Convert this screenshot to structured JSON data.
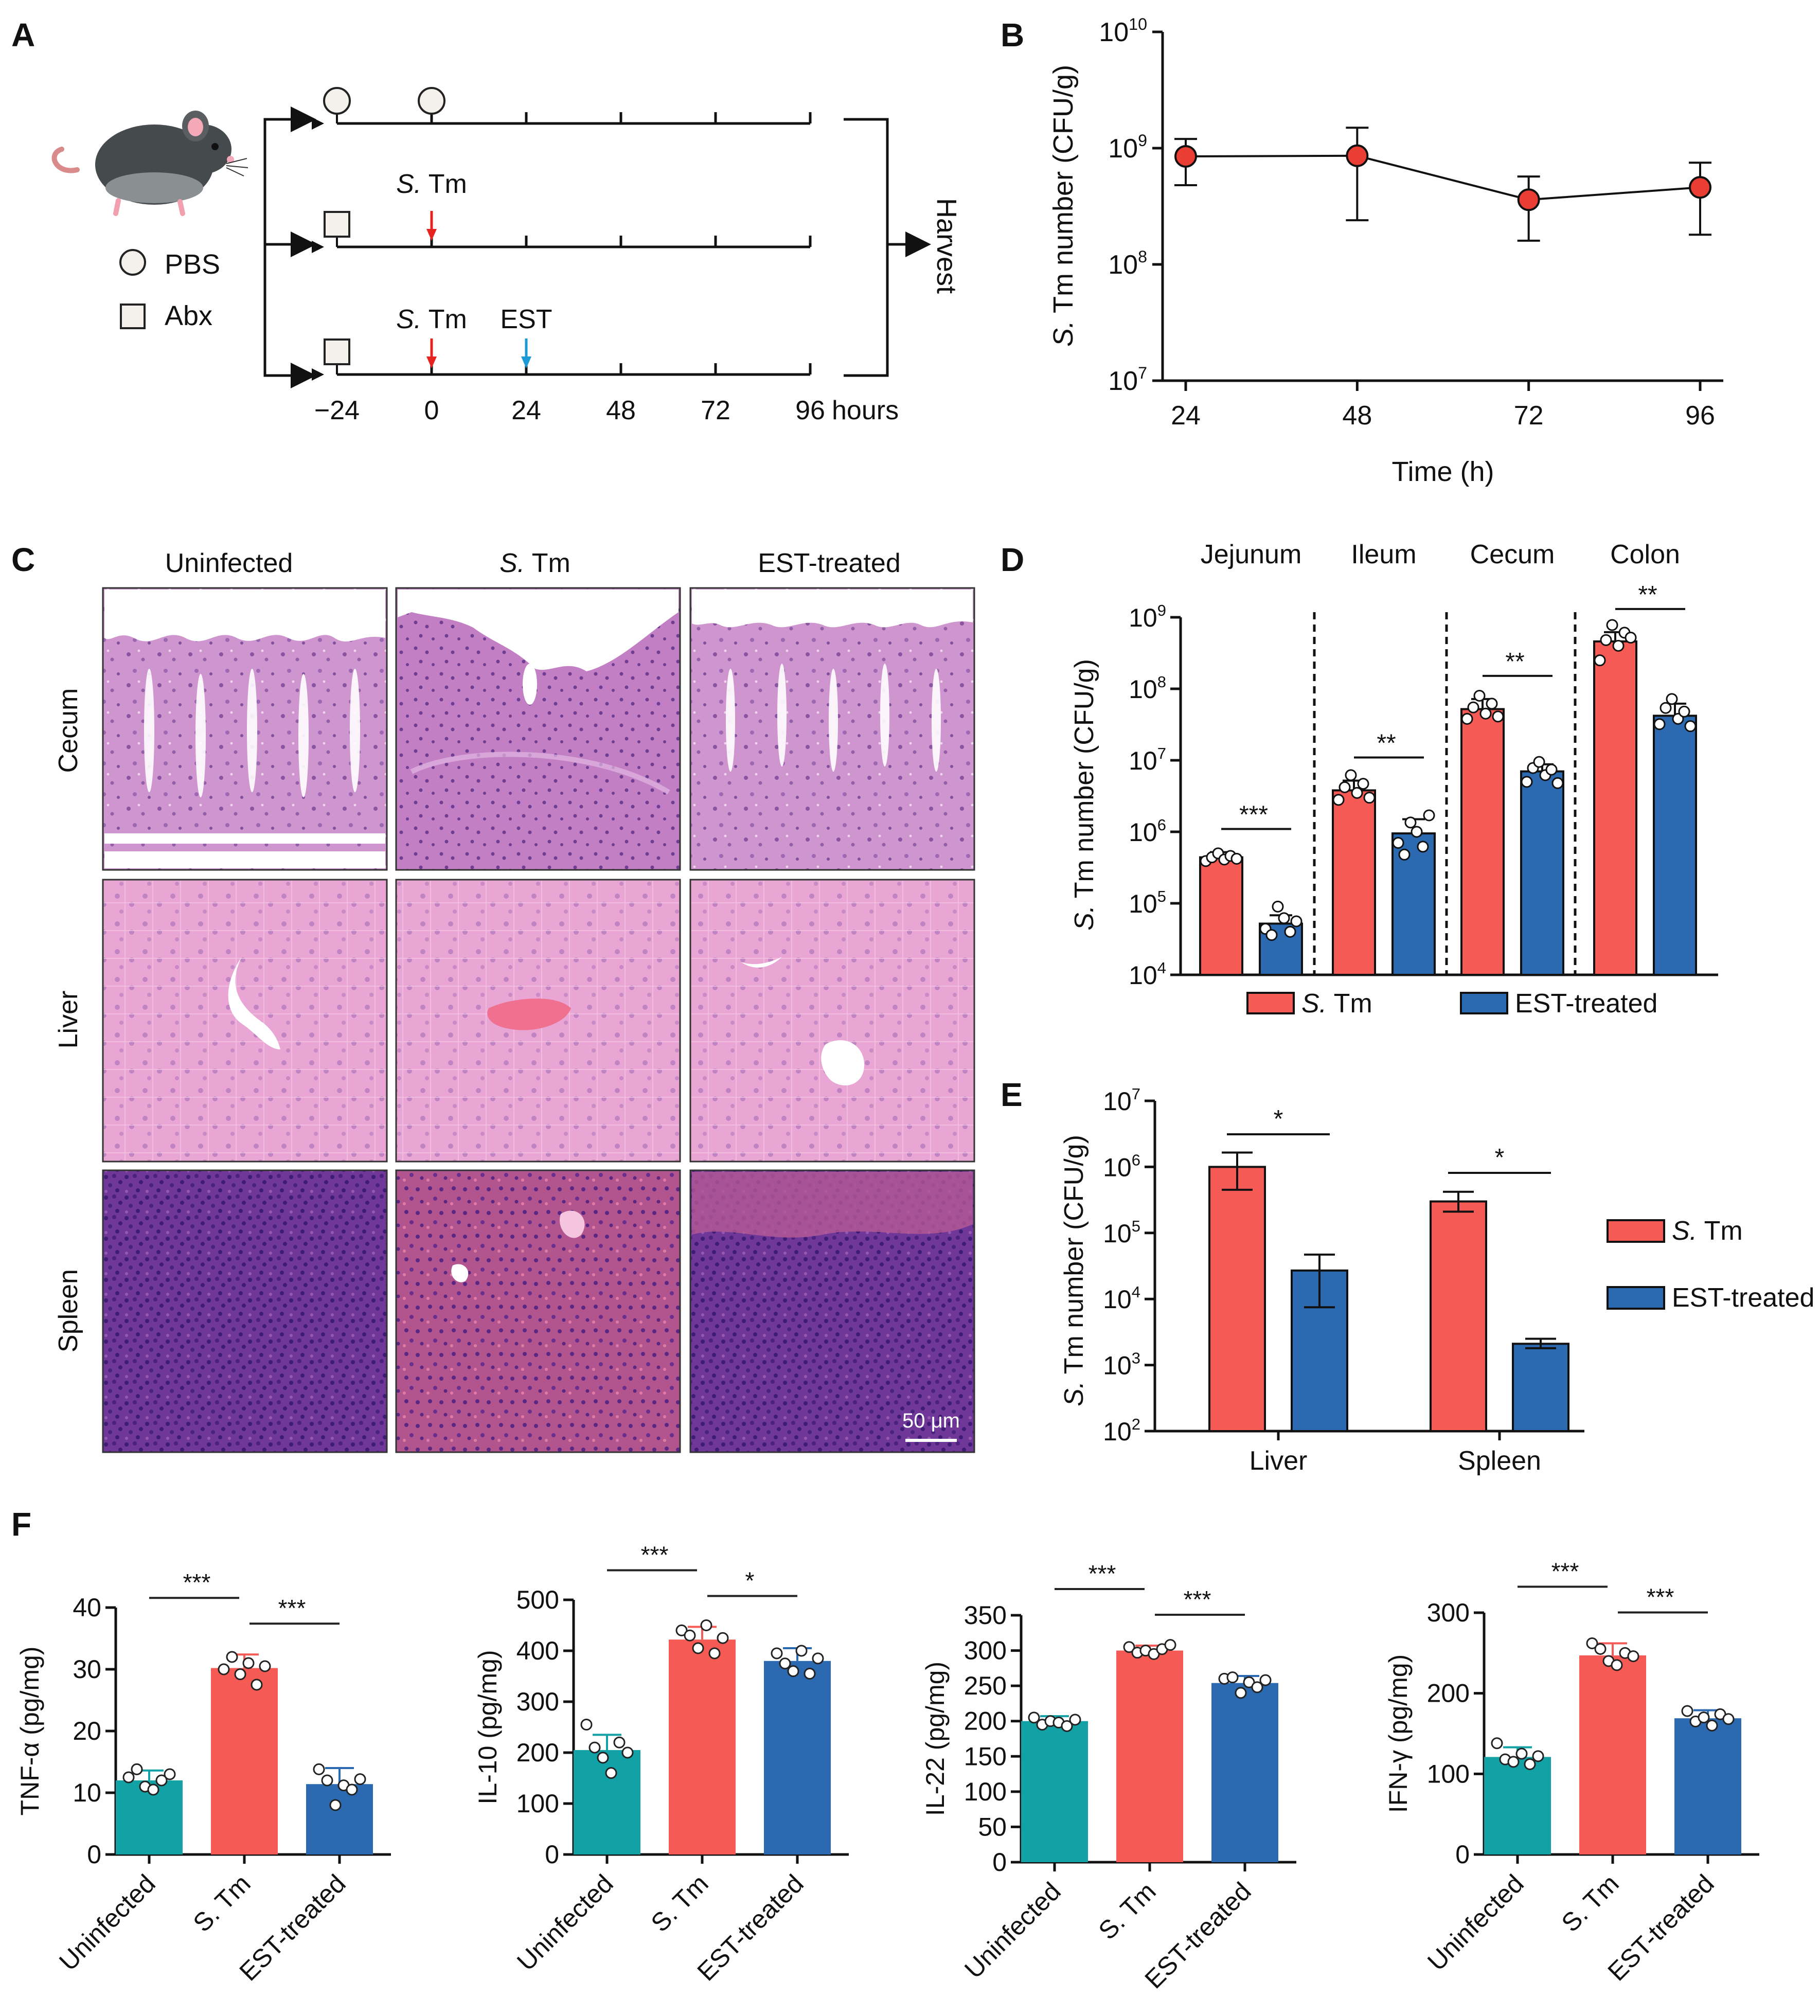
{
  "colors": {
    "stm": "#f65a55",
    "est": "#2b69b1",
    "uninfected": "#12a2a5",
    "red_arrow": "#e8231f",
    "blue_arrow": "#1c9ad6",
    "marker": "#ea3d33",
    "he_cecum": "#c98ac8",
    "he_liver": "#e6a2d0",
    "he_spleen": "#7a3f9e"
  },
  "panel_labels": {
    "a": "A",
    "b": "B",
    "c": "C",
    "d": "D",
    "e": "E",
    "f": "F"
  },
  "panelA": {
    "legend": [
      {
        "icon": "circle-icon",
        "label": "PBS"
      },
      {
        "icon": "square-icon",
        "label": "Abx"
      }
    ],
    "treatments": [
      {
        "label_italic": "S.",
        "label_rest": " Tm",
        "time": 0,
        "arrow": "red"
      },
      {
        "label": "EST",
        "time": 24,
        "arrow": "blue"
      }
    ],
    "time_ticks": [
      "−24",
      "0",
      "24",
      "48",
      "72",
      "96"
    ],
    "time_unit": "hours",
    "end_label": "Harvest"
  },
  "chart_data": [
    {
      "id": "B",
      "type": "line",
      "scale": "log",
      "x": [
        24,
        48,
        72,
        96
      ],
      "y": [
        850000000,
        860000000,
        360000000,
        460000000
      ],
      "err_low": [
        480000000,
        240000000,
        160000000,
        180000000
      ],
      "err_high": [
        1200000000,
        1500000000,
        570000000,
        750000000
      ],
      "xlabel": "Time (h)",
      "ylabel_italic": "S.",
      "ylabel_rest": " Tm number (CFU/g)",
      "ylim_exp": [
        7,
        10
      ],
      "yticks": [
        {
          "base": "10",
          "exp": "7"
        },
        {
          "base": "10",
          "exp": "8"
        },
        {
          "base": "10",
          "exp": "9"
        },
        {
          "base": "10",
          "exp": "10"
        }
      ],
      "xticks": [
        "24",
        "48",
        "72",
        "96"
      ]
    },
    {
      "id": "D",
      "type": "bar",
      "scale": "log",
      "categories": [
        "Jejunum",
        "Ileum",
        "Cecum",
        "Colon"
      ],
      "series": [
        {
          "name_italic": "S.",
          "name_rest": " Tm",
          "key": "stm",
          "values": [
            440000,
            3800000,
            52000000,
            460000000
          ],
          "err_high": [
            520000,
            5200000,
            72000000,
            620000000
          ],
          "points": [
            [
              390000,
              440000,
              500000,
              410000,
              460000,
              420000
            ],
            [
              2800000,
              4200000,
              6200000,
              3500000,
              4700000,
              3000000
            ],
            [
              38000000,
              55000000,
              80000000,
              45000000,
              62000000,
              41000000
            ],
            [
              250000000,
              480000000,
              780000000,
              400000000,
              610000000,
              520000000
            ]
          ]
        },
        {
          "name": "EST-treated",
          "key": "est",
          "values": [
            52000,
            950000,
            7000000,
            42000000
          ],
          "err_high": [
            68000,
            1500000,
            8800000,
            62000000
          ],
          "points": [
            [
              44000,
              36000,
              90000,
              62000,
              40000,
              56000
            ],
            [
              700000,
              480000,
              1350000,
              1000000,
              620000,
              1700000
            ],
            [
              5000000,
              7800000,
              9500000,
              6200000,
              7400000,
              4800000
            ],
            [
              32000000,
              54000000,
              72000000,
              38000000,
              48000000,
              30000000
            ]
          ]
        }
      ],
      "significance": [
        "***",
        "**",
        "**",
        "**"
      ],
      "ylabel_italic": "S.",
      "ylabel_rest": " Tm number (CFU/g)",
      "ylim_exp": [
        4,
        9
      ],
      "yticks": [
        {
          "base": "10",
          "exp": "4"
        },
        {
          "base": "10",
          "exp": "5"
        },
        {
          "base": "10",
          "exp": "6"
        },
        {
          "base": "10",
          "exp": "7"
        },
        {
          "base": "10",
          "exp": "8"
        },
        {
          "base": "10",
          "exp": "9"
        }
      ],
      "legend": {
        "stm_italic": "S.",
        "stm_rest": " Tm",
        "est": "EST-treated"
      }
    },
    {
      "id": "E",
      "type": "bar",
      "scale": "log",
      "categories": [
        "Liver",
        "Spleen"
      ],
      "series": [
        {
          "key": "stm",
          "values": [
            1000000,
            300000
          ],
          "err_low": [
            450000,
            210000
          ],
          "err_high": [
            1650000,
            420000
          ]
        },
        {
          "key": "est",
          "values": [
            27000,
            2100
          ],
          "err_low": [
            7500,
            1800
          ],
          "err_high": [
            47000,
            2500
          ]
        }
      ],
      "significance": [
        "*",
        "*"
      ],
      "ylabel_italic": "S.",
      "ylabel_rest": " Tm number (CFU/g)",
      "ylim_exp": [
        2,
        7
      ],
      "yticks": [
        {
          "base": "10",
          "exp": "2"
        },
        {
          "base": "10",
          "exp": "3"
        },
        {
          "base": "10",
          "exp": "4"
        },
        {
          "base": "10",
          "exp": "5"
        },
        {
          "base": "10",
          "exp": "6"
        },
        {
          "base": "10",
          "exp": "7"
        }
      ],
      "legend": {
        "stm_italic": "S.",
        "stm_rest": " Tm",
        "est": "EST-treated"
      }
    },
    {
      "id": "F1",
      "type": "bar",
      "ylabel": "TNF-α (pg/mg)",
      "ylim": [
        0,
        40
      ],
      "yticks": [
        "0",
        "10",
        "20",
        "30",
        "40"
      ],
      "categories": [
        "Uninfected",
        "S. Tm",
        "EST-treated"
      ],
      "values": [
        12,
        30.2,
        11.4
      ],
      "err": [
        1.6,
        2.2,
        2.6
      ],
      "points": [
        [
          12.5,
          13.8,
          11,
          10.5,
          12,
          13
        ],
        [
          30,
          32,
          29.2,
          31,
          27.5,
          30.5
        ],
        [
          13.8,
          12,
          8,
          11.2,
          10.5,
          12.2
        ]
      ],
      "significance": [
        "***",
        "***"
      ]
    },
    {
      "id": "F2",
      "type": "bar",
      "ylabel": "IL-10 (pg/mg)",
      "ylim": [
        0,
        500
      ],
      "yticks": [
        "0",
        "100",
        "200",
        "300",
        "400",
        "500"
      ],
      "categories": [
        "Uninfected",
        "S. Tm",
        "EST-treated"
      ],
      "values": [
        205,
        422,
        380
      ],
      "err": [
        30,
        25,
        25
      ],
      "points": [
        [
          255,
          210,
          190,
          160,
          220,
          200
        ],
        [
          440,
          430,
          405,
          450,
          395,
          425
        ],
        [
          395,
          375,
          360,
          400,
          355,
          385
        ]
      ],
      "significance": [
        "***",
        "*"
      ]
    },
    {
      "id": "F3",
      "type": "bar",
      "ylabel": "IL-22 (pg/mg)",
      "ylim": [
        0,
        350
      ],
      "yticks": [
        "0",
        "50",
        "100",
        "150",
        "200",
        "250",
        "300",
        "350"
      ],
      "categories": [
        "Uninfected",
        "S. Tm",
        "EST-treated"
      ],
      "values": [
        200,
        300,
        254
      ],
      "err": [
        7,
        7,
        10
      ],
      "points": [
        [
          205,
          195,
          200,
          198,
          193,
          202
        ],
        [
          305,
          297,
          300,
          295,
          302,
          308
        ],
        [
          260,
          262,
          240,
          255,
          248,
          258
        ]
      ],
      "significance": [
        "***",
        "***"
      ]
    },
    {
      "id": "F4",
      "type": "bar",
      "ylabel": "IFN-γ (pg/mg)",
      "ylim": [
        0,
        300
      ],
      "yticks": [
        "0",
        "100",
        "200",
        "300"
      ],
      "categories": [
        "Uninfected",
        "S. Tm",
        "EST-treated"
      ],
      "values": [
        121,
        247,
        169
      ],
      "err": [
        12,
        15,
        10
      ],
      "points": [
        [
          138,
          118,
          115,
          125,
          112,
          122
        ],
        [
          262,
          255,
          240,
          235,
          250,
          246
        ],
        [
          178,
          165,
          170,
          160,
          174,
          168
        ]
      ],
      "significance": [
        "***",
        "***"
      ]
    }
  ],
  "panelC": {
    "columns": [
      {
        "label": "Uninfected"
      },
      {
        "label_italic": "S.",
        "label_rest": " Tm"
      },
      {
        "label": "EST-treated"
      }
    ],
    "rows": [
      "Cecum",
      "Liver",
      "Spleen"
    ],
    "scale_bar": "50 μm"
  }
}
